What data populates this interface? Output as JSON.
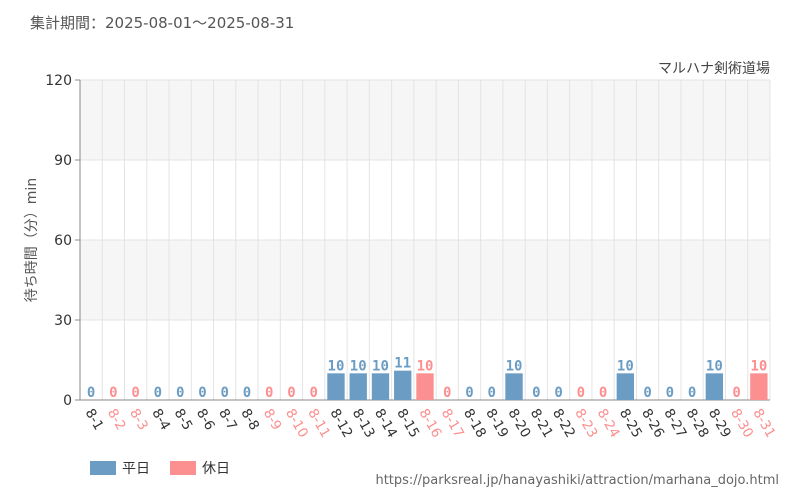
{
  "header": {
    "period": "集計期間：2025-08-01～2025-08-31"
  },
  "footer": {
    "url": "https://parksreal.jp/hanayashiki/attraction/marhana_dojo.html"
  },
  "colors": {
    "weekday": "#6a9cc4",
    "holiday": "#fc8f8f",
    "grid": "#e4e4e4",
    "band": "#f6f6f6"
  },
  "chart_data": {
    "type": "bar",
    "title": "マルハナ剣術道場",
    "ylabel": "待ち時間（分）min",
    "ylim": [
      0,
      120
    ],
    "yticks": [
      "0",
      "30",
      "60",
      "90",
      "120"
    ],
    "categories": [
      "8-1",
      "8-2",
      "8-3",
      "8-4",
      "8-5",
      "8-6",
      "8-7",
      "8-8",
      "8-9",
      "8-10",
      "8-11",
      "8-12",
      "8-13",
      "8-14",
      "8-15",
      "8-16",
      "8-17",
      "8-18",
      "8-19",
      "8-20",
      "8-21",
      "8-22",
      "8-23",
      "8-24",
      "8-25",
      "8-26",
      "8-27",
      "8-28",
      "8-29",
      "8-30",
      "8-31"
    ],
    "values": [
      0,
      0,
      0,
      0,
      0,
      0,
      0,
      0,
      0,
      0,
      0,
      10,
      10,
      10,
      11,
      10,
      0,
      0,
      0,
      10,
      0,
      0,
      0,
      0,
      10,
      0,
      0,
      0,
      10,
      0,
      10
    ],
    "day_type": [
      "weekday",
      "holiday",
      "holiday",
      "weekday",
      "weekday",
      "weekday",
      "weekday",
      "weekday",
      "holiday",
      "holiday",
      "holiday",
      "weekday",
      "weekday",
      "weekday",
      "weekday",
      "holiday",
      "holiday",
      "weekday",
      "weekday",
      "weekday",
      "weekday",
      "weekday",
      "holiday",
      "holiday",
      "weekday",
      "weekday",
      "weekday",
      "weekday",
      "weekday",
      "holiday",
      "holiday"
    ],
    "legend": [
      {
        "label": "平日",
        "type": "weekday"
      },
      {
        "label": "休日",
        "type": "holiday"
      }
    ],
    "legend_position": "bottom-left",
    "grid": true
  }
}
